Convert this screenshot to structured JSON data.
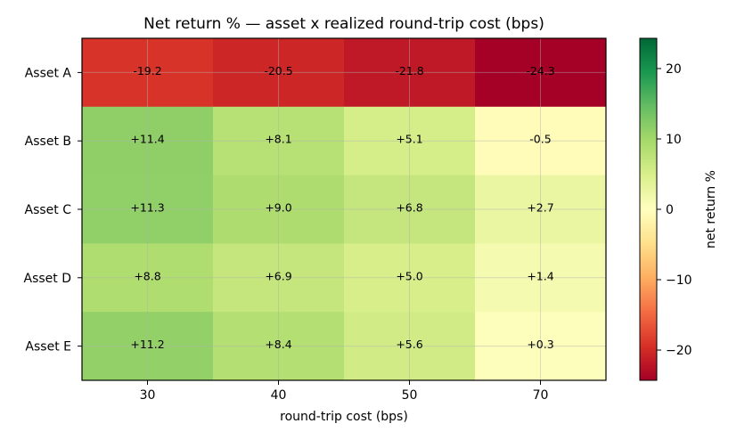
{
  "chart_data": {
    "type": "heatmap",
    "title": "Net return % — asset x realized round-trip cost (bps)",
    "xlabel": "round-trip cost (bps)",
    "ylabel": "",
    "x_categories": [
      "30",
      "40",
      "50",
      "70"
    ],
    "y_categories": [
      "Asset A",
      "Asset B",
      "Asset C",
      "Asset D",
      "Asset E"
    ],
    "values": [
      [
        -19.2,
        -20.5,
        -21.8,
        -24.3
      ],
      [
        11.4,
        8.1,
        5.1,
        -0.5
      ],
      [
        11.3,
        9.0,
        6.8,
        2.7
      ],
      [
        8.8,
        6.9,
        5.0,
        1.4
      ],
      [
        11.2,
        8.4,
        5.6,
        0.3
      ]
    ],
    "cell_labels": [
      [
        "-19.2",
        "-20.5",
        "-21.8",
        "-24.3"
      ],
      [
        "+11.4",
        "+8.1",
        "+5.1",
        "-0.5"
      ],
      [
        "+11.3",
        "+9.0",
        "+6.8",
        "+2.7"
      ],
      [
        "+8.8",
        "+6.9",
        "+5.0",
        "+1.4"
      ],
      [
        "+11.2",
        "+8.4",
        "+5.6",
        "+0.3"
      ]
    ],
    "colormap": "RdYlGn",
    "vmin": -24.3,
    "vmax": 24.3,
    "grid": true,
    "colorbar": {
      "label": "net return %",
      "ticks": [
        20,
        10,
        0,
        -10,
        -20
      ],
      "tick_labels": [
        "20",
        "10",
        "0",
        "−10",
        "−20"
      ]
    }
  }
}
